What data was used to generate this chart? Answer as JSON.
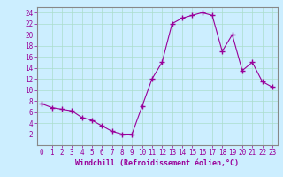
{
  "x": [
    0,
    1,
    2,
    3,
    4,
    5,
    6,
    7,
    8,
    9,
    10,
    11,
    12,
    13,
    14,
    15,
    16,
    17,
    18,
    19,
    20,
    21,
    22,
    23
  ],
  "y": [
    7.5,
    6.8,
    6.5,
    6.2,
    5.0,
    4.5,
    3.5,
    2.5,
    2.0,
    2.0,
    7.0,
    12.0,
    15.0,
    22.0,
    23.0,
    23.5,
    24.0,
    23.5,
    17.0,
    20.0,
    13.5,
    15.0,
    11.5,
    10.5
  ],
  "line_color": "#990099",
  "marker": "+",
  "marker_size": 4,
  "bg_color": "#cceeff",
  "grid_color": "#aaddcc",
  "xlabel": "Windchill (Refroidissement éolien,°C)",
  "xlabel_color": "#990099",
  "tick_color": "#990099",
  "axis_color": "#888888",
  "ylim": [
    0,
    25
  ],
  "xlim": [
    -0.5,
    23.5
  ],
  "yticks": [
    2,
    4,
    6,
    8,
    10,
    12,
    14,
    16,
    18,
    20,
    22,
    24
  ],
  "xticks": [
    0,
    1,
    2,
    3,
    4,
    5,
    6,
    7,
    8,
    9,
    10,
    11,
    12,
    13,
    14,
    15,
    16,
    17,
    18,
    19,
    20,
    21,
    22,
    23
  ],
  "tick_fontsize": 5.5,
  "xlabel_fontsize": 6.0
}
